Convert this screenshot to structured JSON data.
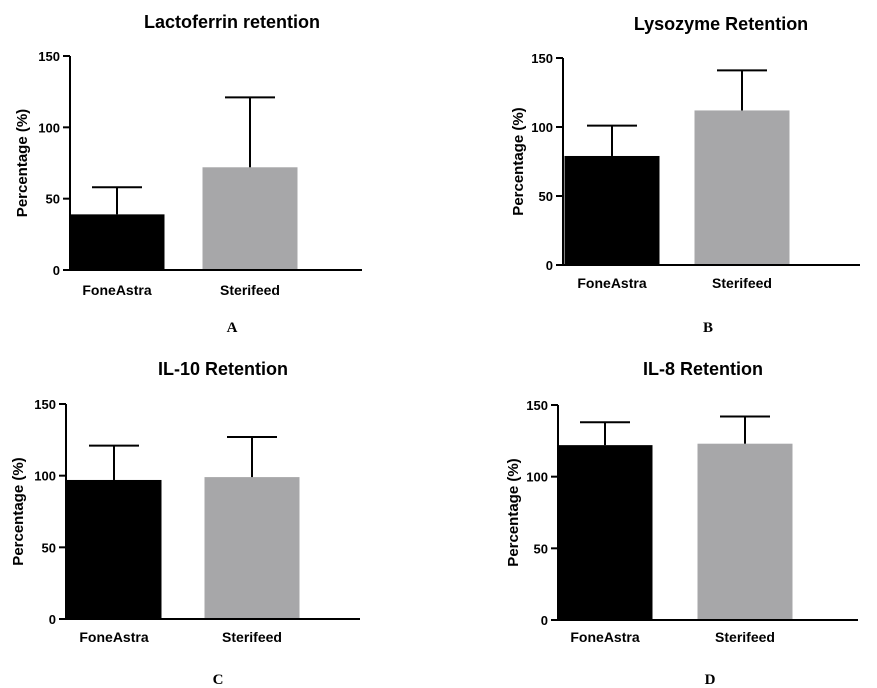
{
  "colors": {
    "foneastra": "#000000",
    "sterifeed": "#a7a7a9",
    "axis": "#000000",
    "background": "#ffffff"
  },
  "chart_data": [
    {
      "panel": "A",
      "type": "bar",
      "title": "Lactoferrin retention",
      "xlabel": "",
      "ylabel": "Percentage (%)",
      "ylim": [
        0,
        150
      ],
      "yticks": [
        "0",
        "50",
        "100",
        "150"
      ],
      "categories": [
        "FoneAstra",
        "Sterifeed"
      ],
      "values": [
        39,
        72
      ],
      "errors": [
        19,
        49
      ],
      "colors": [
        "#000000",
        "#a7a7a9"
      ],
      "grid": false
    },
    {
      "panel": "B",
      "type": "bar",
      "title": "Lysozyme Retention",
      "xlabel": "",
      "ylabel": "Percentage (%)",
      "ylim": [
        0,
        150
      ],
      "yticks": [
        "0",
        "50",
        "100",
        "150"
      ],
      "categories": [
        "FoneAstra",
        "Sterifeed"
      ],
      "values": [
        79,
        112
      ],
      "errors": [
        22,
        29
      ],
      "colors": [
        "#000000",
        "#a7a7a9"
      ],
      "grid": false
    },
    {
      "panel": "C",
      "type": "bar",
      "title": "IL-10 Retention",
      "xlabel": "",
      "ylabel": "Percentage (%)",
      "ylim": [
        0,
        150
      ],
      "yticks": [
        "0",
        "50",
        "100",
        "150"
      ],
      "categories": [
        "FoneAstra",
        "Sterifeed"
      ],
      "values": [
        97,
        99
      ],
      "errors": [
        24,
        28
      ],
      "colors": [
        "#000000",
        "#a7a7a9"
      ],
      "grid": false
    },
    {
      "panel": "D",
      "type": "bar",
      "title": "IL-8 Retention",
      "xlabel": "",
      "ylabel": "Percentage (%)",
      "ylim": [
        0,
        150
      ],
      "yticks": [
        "0",
        "50",
        "100",
        "150"
      ],
      "categories": [
        "FoneAstra",
        "Sterifeed"
      ],
      "values": [
        122,
        123
      ],
      "errors": [
        16,
        19
      ],
      "colors": [
        "#000000",
        "#a7a7a9"
      ],
      "grid": false
    }
  ]
}
